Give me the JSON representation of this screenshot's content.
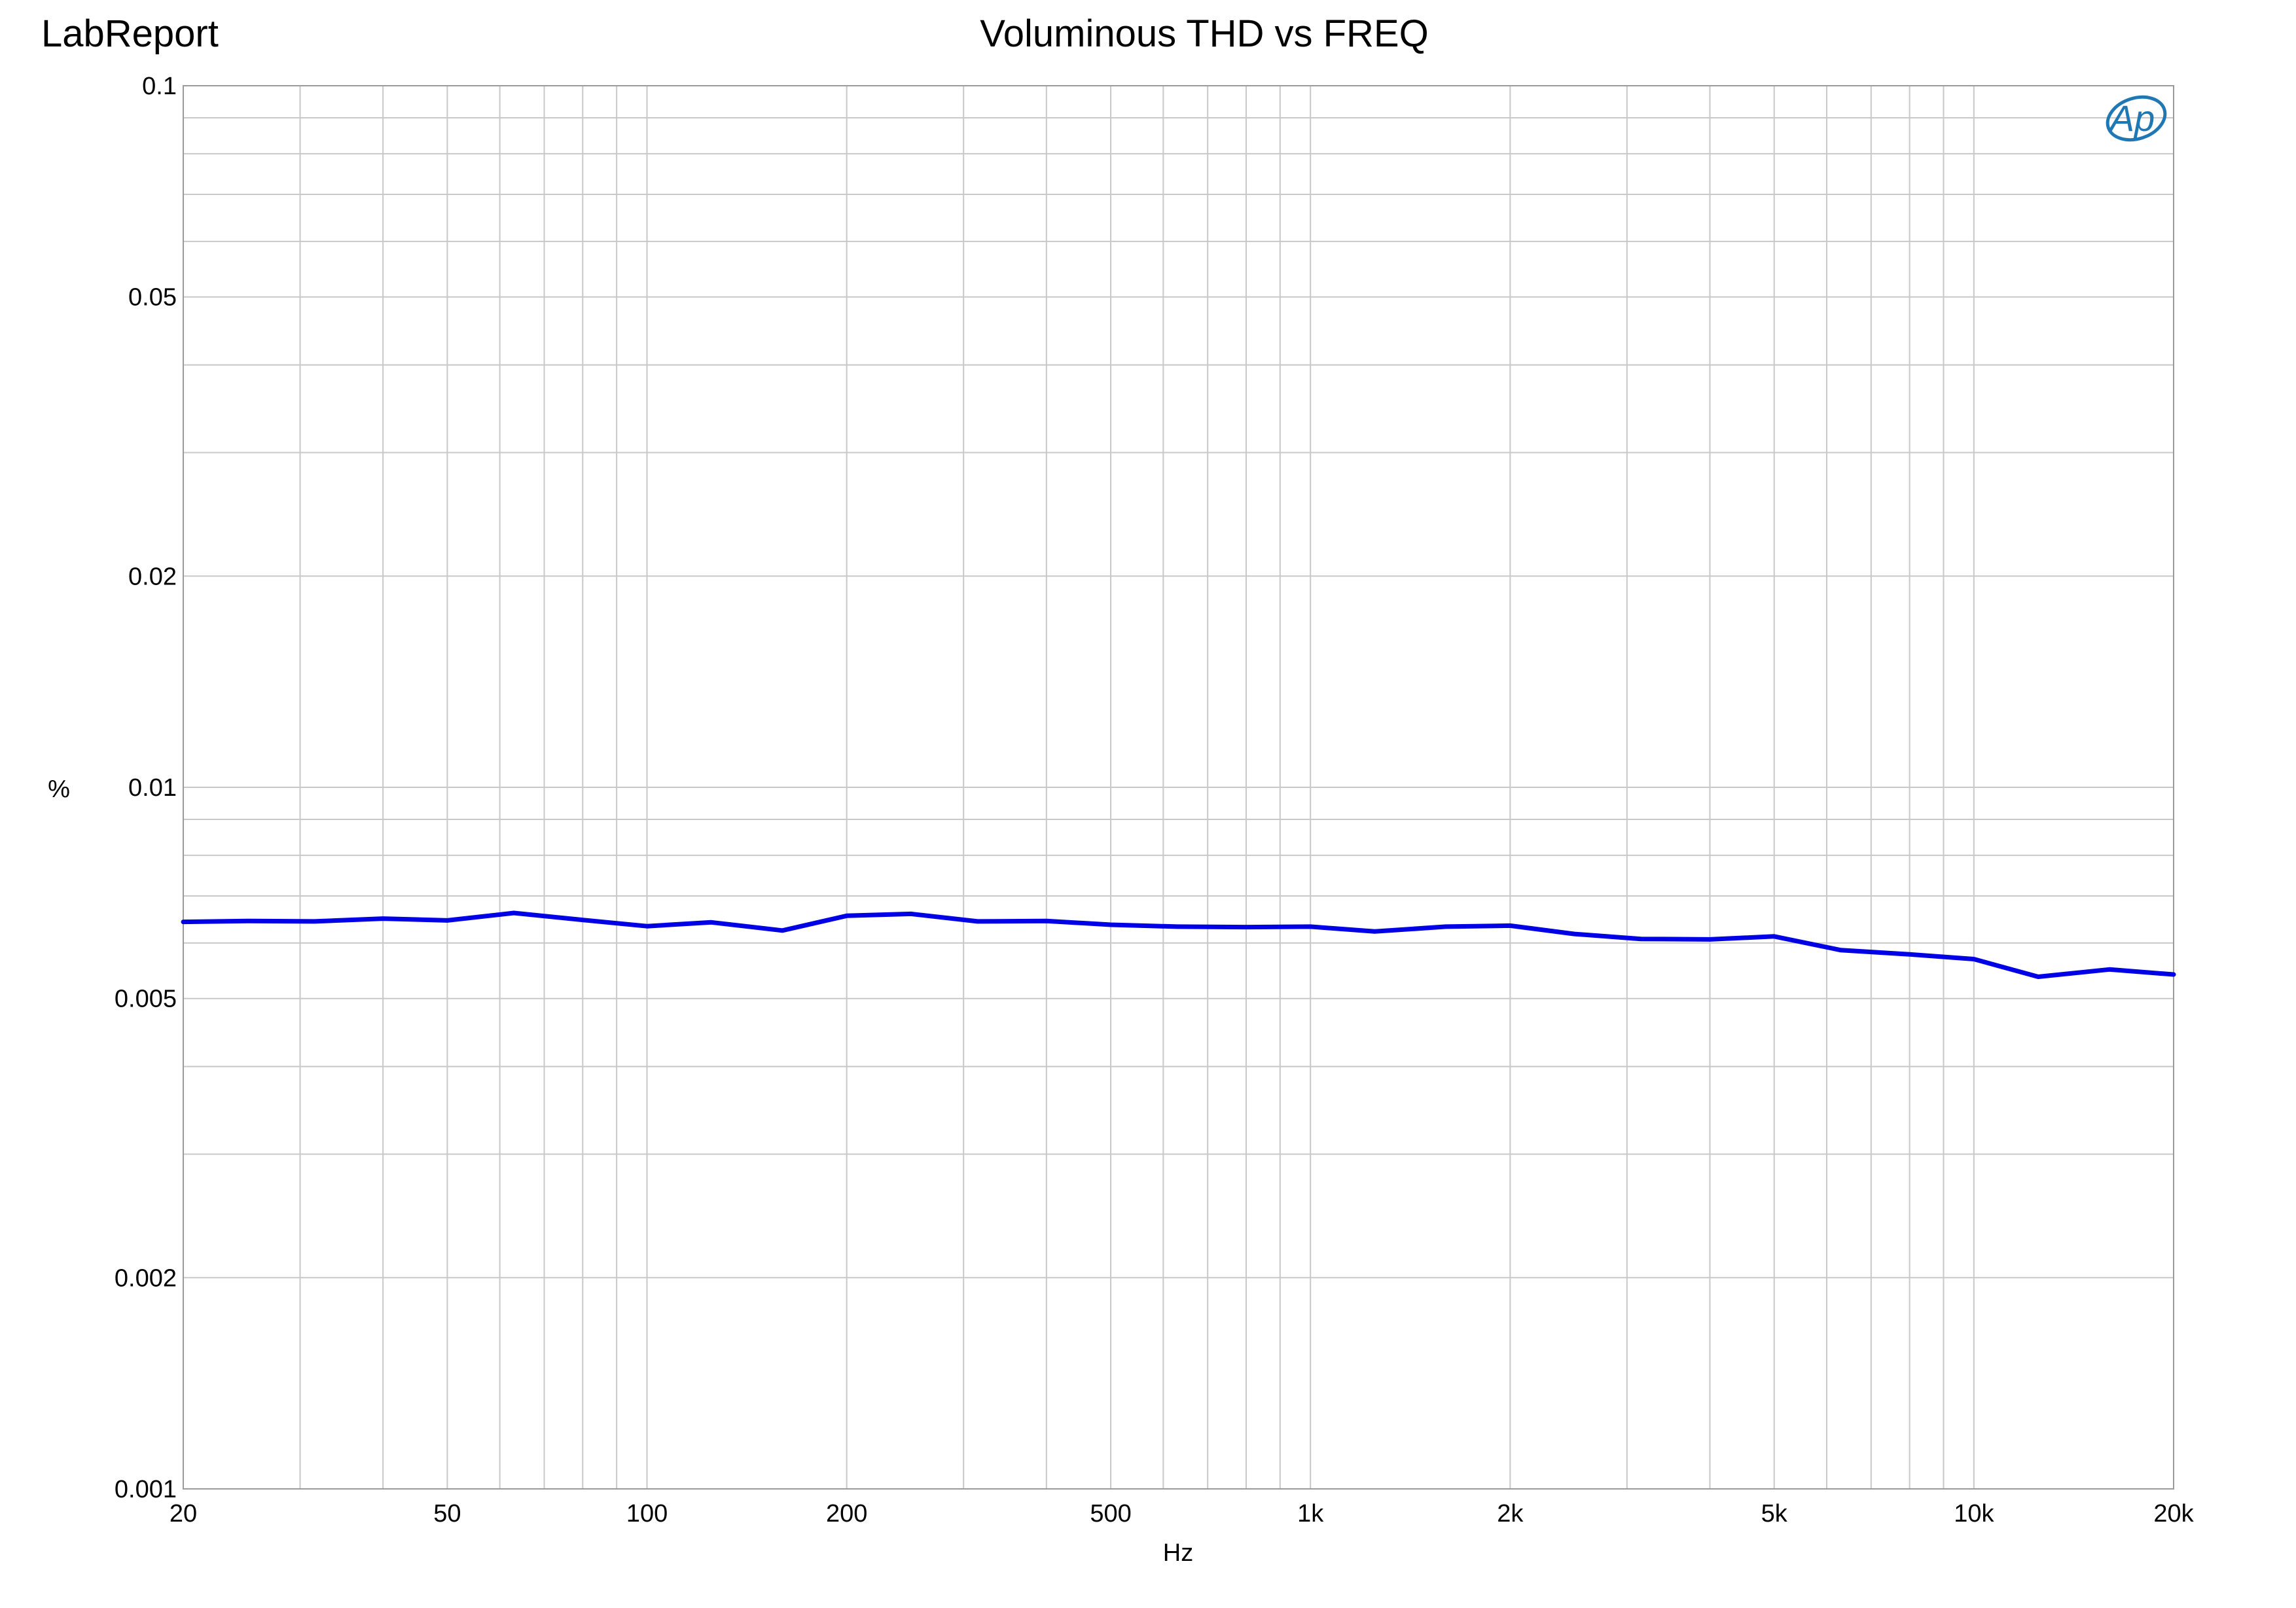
{
  "header": {
    "brand": "LabReport",
    "title": "Voluminous THD vs FREQ"
  },
  "logo": {
    "text": "Ap",
    "color": "#1F78B4"
  },
  "chart_data": {
    "type": "line",
    "title": "Voluminous THD vs FREQ",
    "xlabel": "Hz",
    "ylabel": "%",
    "x_scale": "log",
    "y_scale": "log",
    "xlim": [
      20,
      20000
    ],
    "ylim": [
      0.001,
      0.1
    ],
    "grid": true,
    "x_ticks": [
      {
        "value": 20,
        "label": "20"
      },
      {
        "value": 50,
        "label": "50"
      },
      {
        "value": 100,
        "label": "100"
      },
      {
        "value": 200,
        "label": "200"
      },
      {
        "value": 500,
        "label": "500"
      },
      {
        "value": 1000,
        "label": "1k"
      },
      {
        "value": 2000,
        "label": "2k"
      },
      {
        "value": 5000,
        "label": "5k"
      },
      {
        "value": 10000,
        "label": "10k"
      },
      {
        "value": 20000,
        "label": "20k"
      }
    ],
    "y_ticks": [
      {
        "value": 0.1,
        "label": "0.1"
      },
      {
        "value": 0.05,
        "label": "0.05"
      },
      {
        "value": 0.02,
        "label": "0.02"
      },
      {
        "value": 0.01,
        "label": "0.01"
      },
      {
        "value": 0.005,
        "label": "0.005"
      },
      {
        "value": 0.002,
        "label": "0.002"
      },
      {
        "value": 0.001,
        "label": "0.001"
      }
    ],
    "series": [
      {
        "color": "#0000E6",
        "x": [
          20,
          25,
          31.5,
          40,
          50,
          63,
          80,
          100,
          125,
          160,
          200,
          250,
          315,
          400,
          500,
          630,
          800,
          1000,
          1250,
          1600,
          2000,
          2500,
          3150,
          4000,
          5000,
          6300,
          8000,
          10000,
          12500,
          16000,
          20000
        ],
        "y": [
          0.00643,
          0.00645,
          0.00644,
          0.0065,
          0.00646,
          0.00662,
          0.00647,
          0.00634,
          0.00642,
          0.00625,
          0.00656,
          0.0066,
          0.00644,
          0.00645,
          0.00637,
          0.00633,
          0.00632,
          0.00633,
          0.00623,
          0.00633,
          0.00635,
          0.00618,
          0.00608,
          0.00607,
          0.00613,
          0.00586,
          0.00578,
          0.00569,
          0.00537,
          0.0055,
          0.00541
        ]
      }
    ]
  }
}
